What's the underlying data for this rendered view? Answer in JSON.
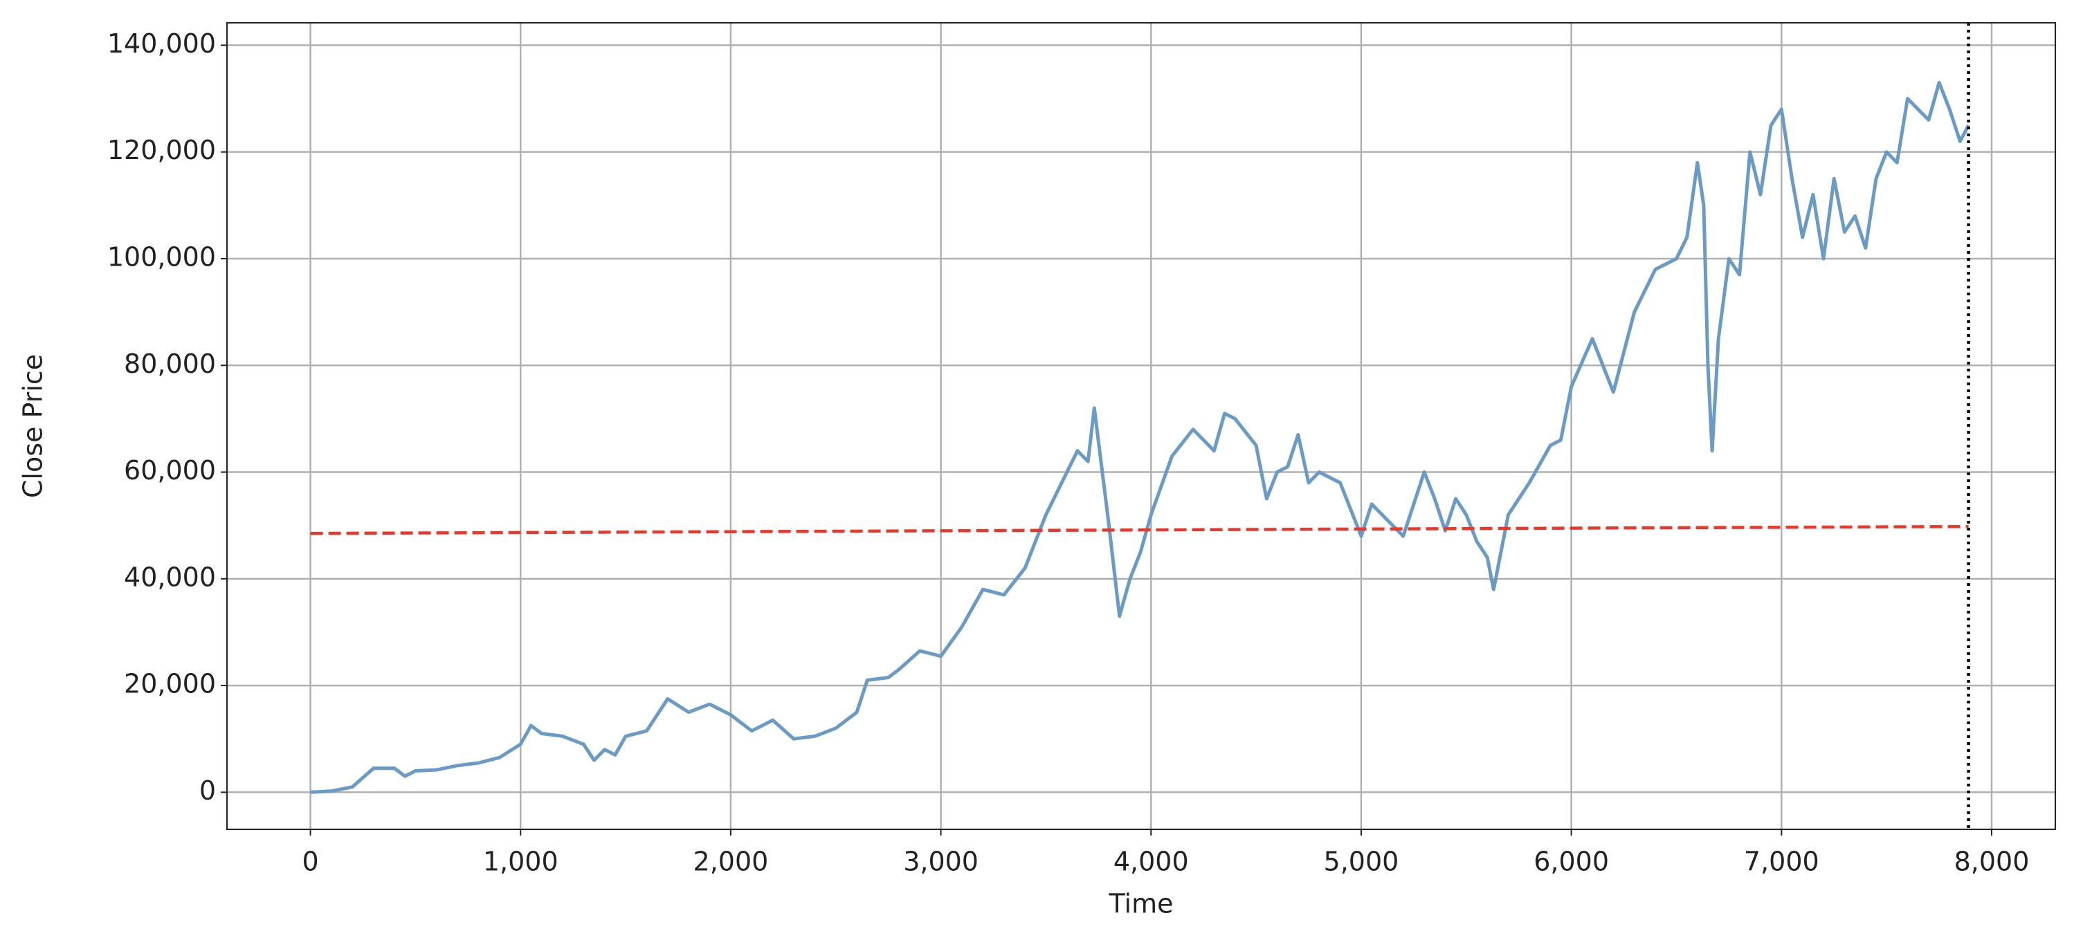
{
  "chart_data": {
    "type": "line",
    "xlabel": "Time",
    "ylabel": "Close Price",
    "xlim": [
      -397,
      8303
    ],
    "ylim": [
      -6950,
      144200
    ],
    "xticks": [
      0,
      {
        "value": 1000,
        "label": "1,000"
      },
      {
        "value": 2000,
        "label": "2,000"
      },
      {
        "value": 3000,
        "label": "3,000"
      },
      {
        "value": 4000,
        "label": "4,000"
      },
      {
        "value": 5000,
        "label": "5,000"
      },
      {
        "value": 6000,
        "label": "6,000"
      },
      {
        "value": 7000,
        "label": "7,000"
      },
      {
        "value": 8000,
        "label": "8,000"
      }
    ],
    "yticks": [
      0,
      {
        "value": 20000,
        "label": "20,000"
      },
      {
        "value": 40000,
        "label": "40,000"
      },
      {
        "value": 60000,
        "label": "60,000"
      },
      {
        "value": 80000,
        "label": "80,000"
      },
      {
        "value": 100000,
        "label": "100,000"
      },
      {
        "value": 120000,
        "label": "120,000"
      },
      {
        "value": 140000,
        "label": "140,000"
      }
    ],
    "grid": true,
    "series": [
      {
        "color": "#6a9ac6",
        "style": "solid",
        "x": [
          0,
          100,
          200,
          300,
          400,
          450,
          500,
          600,
          700,
          800,
          900,
          1000,
          1050,
          1100,
          1200,
          1300,
          1350,
          1400,
          1450,
          1500,
          1600,
          1700,
          1800,
          1900,
          2000,
          2100,
          2200,
          2300,
          2400,
          2500,
          2600,
          2650,
          2750,
          2800,
          2900,
          3000,
          3100,
          3200,
          3300,
          3400,
          3500,
          3600,
          3650,
          3700,
          3730,
          3800,
          3850,
          3900,
          3950,
          4000,
          4100,
          4200,
          4250,
          4300,
          4350,
          4400,
          4500,
          4550,
          4600,
          4650,
          4700,
          4750,
          4800,
          4900,
          5000,
          5050,
          5100,
          5200,
          5300,
          5350,
          5400,
          5450,
          5500,
          5550,
          5600,
          5630,
          5700,
          5800,
          5900,
          5950,
          6000,
          6100,
          6200,
          6300,
          6400,
          6500,
          6550,
          6600,
          6630,
          6650,
          6670,
          6700,
          6750,
          6800,
          6850,
          6900,
          6950,
          7000,
          7050,
          7100,
          7150,
          7200,
          7250,
          7300,
          7350,
          7400,
          7450,
          7500,
          7550,
          7600,
          7650,
          7700,
          7750,
          7800,
          7850,
          7890
        ],
        "values": [
          0,
          200,
          1000,
          4500,
          4500,
          3000,
          4000,
          4200,
          5000,
          5500,
          6500,
          9000,
          12500,
          11000,
          10500,
          9000,
          6000,
          8000,
          7000,
          10500,
          11500,
          17500,
          15000,
          16500,
          14500,
          11500,
          13500,
          10000,
          10500,
          12000,
          15000,
          21000,
          21500,
          23000,
          26500,
          25500,
          31000,
          38000,
          37000,
          42000,
          52000,
          60000,
          64000,
          62000,
          72000,
          50000,
          33000,
          40000,
          45000,
          52000,
          63000,
          68000,
          66000,
          64000,
          71000,
          70000,
          65000,
          55000,
          60000,
          61000,
          67000,
          58000,
          60000,
          58000,
          48000,
          54000,
          52000,
          48000,
          60000,
          55000,
          49000,
          55000,
          52000,
          47000,
          44000,
          38000,
          52000,
          58000,
          65000,
          66000,
          76000,
          85000,
          75000,
          90000,
          98000,
          100000,
          104000,
          118000,
          110000,
          80000,
          64000,
          85000,
          100000,
          97000,
          120000,
          112000,
          125000,
          128000,
          115000,
          104000,
          112000,
          100000,
          115000,
          105000,
          108000,
          102000,
          115000,
          120000,
          118000,
          130000,
          128000,
          126000,
          133000,
          128000,
          122000,
          125000
        ]
      },
      {
        "color": "#e8382a",
        "style": "dashed",
        "x": [
          0,
          7890
        ],
        "values": [
          48500,
          49800
        ]
      }
    ],
    "vline": {
      "x": 7890,
      "color": "#000000",
      "style": "dotted"
    }
  }
}
